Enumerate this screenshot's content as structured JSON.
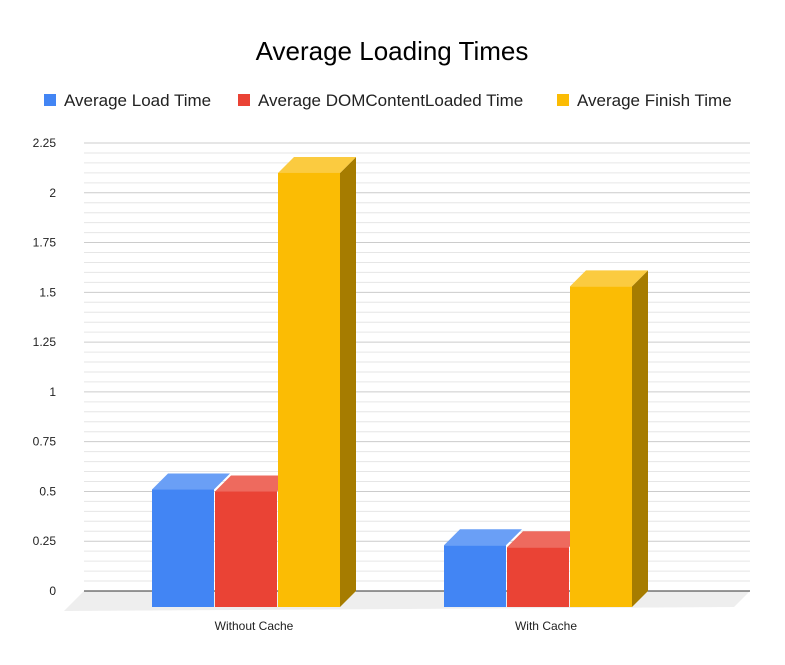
{
  "chart_data": {
    "type": "bar",
    "title": "Average Loading Times",
    "categories": [
      "Without Cache",
      "With Cache"
    ],
    "series": [
      {
        "name": "Average Load Time",
        "color": "#4285f4",
        "top_color": "#6a9ff6",
        "values": [
          0.59,
          0.31
        ]
      },
      {
        "name": "Average DOMContentLoaded Time",
        "color": "#ea4335",
        "top_color": "#ee6a5e",
        "values": [
          0.58,
          0.3
        ]
      },
      {
        "name": "Average Finish Time",
        "color": "#fbbc04",
        "top_color": "#fbcb40",
        "side_color": "#a67c00",
        "values": [
          2.18,
          1.61
        ]
      }
    ],
    "yticks": [
      "0",
      "0.25",
      "0.5",
      "0.75",
      "1",
      "1.25",
      "1.5",
      "1.75",
      "2",
      "2.25"
    ],
    "ylim": [
      0,
      2.25
    ],
    "xlabel": "",
    "ylabel": "",
    "grid": true,
    "legend_position": "top",
    "style": "3d"
  }
}
